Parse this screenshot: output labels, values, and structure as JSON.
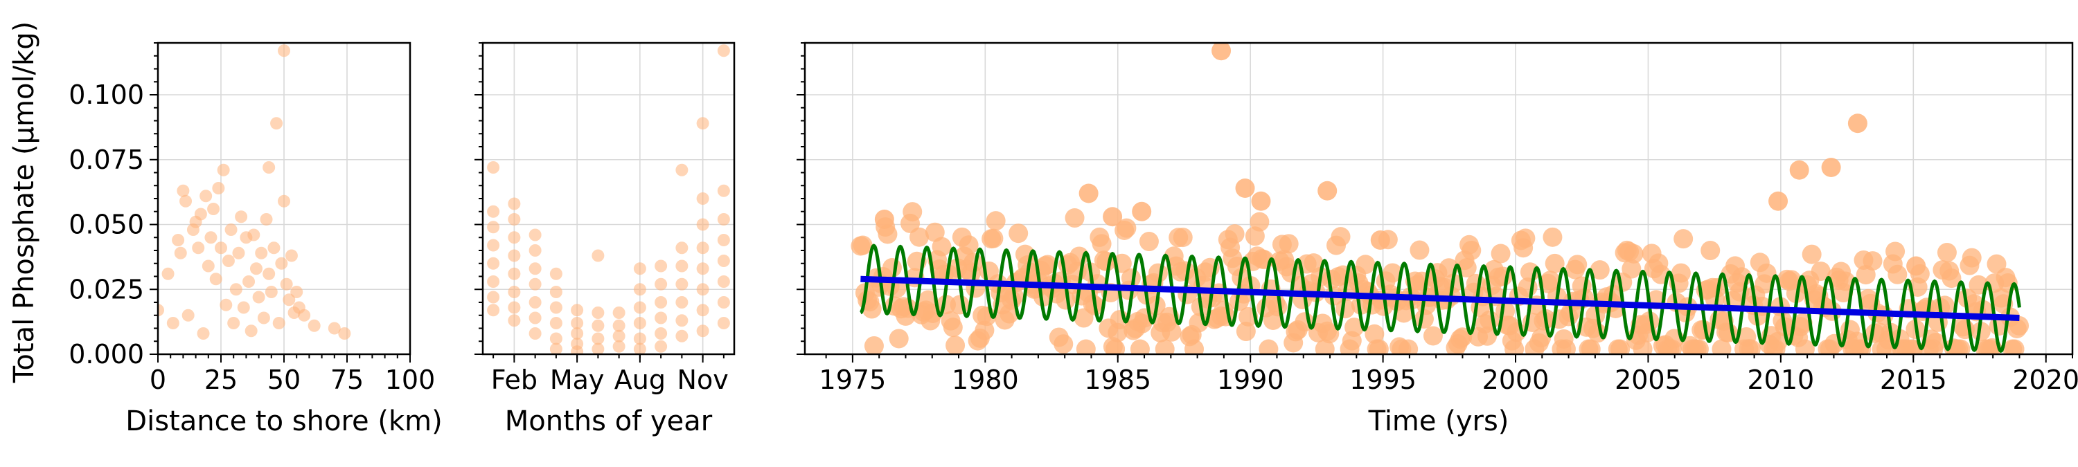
{
  "chart_data": [
    {
      "type": "scatter",
      "xlabel": "Distance to shore (km)",
      "ylabel": "Total Phosphate (µmol/kg)",
      "xlim": [
        0,
        100
      ],
      "ylim": [
        0,
        0.12
      ],
      "xticks": [
        0,
        25,
        50,
        75,
        100
      ],
      "xtick_labels": [
        "0",
        "25",
        "50",
        "75",
        "100"
      ],
      "yticks": [
        0.0,
        0.025,
        0.05,
        0.075,
        0.1
      ],
      "ytick_labels": [
        "0.000",
        "0.025",
        "0.050",
        "0.075",
        "0.100"
      ],
      "grid": true,
      "marker_color": "#ffb37a",
      "points": [
        [
          0,
          0.017
        ],
        [
          4,
          0.031
        ],
        [
          6,
          0.012
        ],
        [
          8,
          0.044
        ],
        [
          9,
          0.039
        ],
        [
          10,
          0.063
        ],
        [
          11,
          0.059
        ],
        [
          12,
          0.015
        ],
        [
          14,
          0.048
        ],
        [
          15,
          0.051
        ],
        [
          16,
          0.041
        ],
        [
          17,
          0.054
        ],
        [
          18,
          0.008
        ],
        [
          19,
          0.061
        ],
        [
          20,
          0.034
        ],
        [
          21,
          0.045
        ],
        [
          22,
          0.056
        ],
        [
          23,
          0.029
        ],
        [
          24,
          0.064
        ],
        [
          25,
          0.041
        ],
        [
          26,
          0.071
        ],
        [
          27,
          0.019
        ],
        [
          28,
          0.036
        ],
        [
          29,
          0.048
        ],
        [
          30,
          0.012
        ],
        [
          31,
          0.025
        ],
        [
          32,
          0.039
        ],
        [
          33,
          0.053
        ],
        [
          34,
          0.018
        ],
        [
          35,
          0.045
        ],
        [
          36,
          0.028
        ],
        [
          37,
          0.009
        ],
        [
          38,
          0.046
        ],
        [
          39,
          0.033
        ],
        [
          40,
          0.022
        ],
        [
          41,
          0.039
        ],
        [
          42,
          0.014
        ],
        [
          43,
          0.052
        ],
        [
          44,
          0.031
        ],
        [
          44,
          0.072
        ],
        [
          45,
          0.024
        ],
        [
          46,
          0.041
        ],
        [
          47,
          0.089
        ],
        [
          48,
          0.012
        ],
        [
          49,
          0.035
        ],
        [
          50,
          0.117
        ],
        [
          50,
          0.059
        ],
        [
          51,
          0.027
        ],
        [
          52,
          0.021
        ],
        [
          53,
          0.038
        ],
        [
          54,
          0.016
        ],
        [
          55,
          0.024
        ],
        [
          56,
          0.018
        ],
        [
          58,
          0.015
        ],
        [
          62,
          0.011
        ],
        [
          70,
          0.01
        ],
        [
          74,
          0.008
        ]
      ]
    },
    {
      "type": "scatter",
      "xlabel": "Months of year",
      "ylim": [
        0,
        0.12
      ],
      "xlim": [
        0.5,
        12.5
      ],
      "xticks": [
        2,
        5,
        8,
        11
      ],
      "xtick_labels": [
        "Feb",
        "May",
        "Aug",
        "Nov"
      ],
      "grid": true,
      "marker_color": "#ffb37a",
      "points": [
        [
          1,
          0.072
        ],
        [
          1,
          0.055
        ],
        [
          1,
          0.049
        ],
        [
          1,
          0.042
        ],
        [
          1,
          0.035
        ],
        [
          1,
          0.028
        ],
        [
          1,
          0.022
        ],
        [
          1,
          0.017
        ],
        [
          2,
          0.058
        ],
        [
          2,
          0.052
        ],
        [
          2,
          0.045
        ],
        [
          2,
          0.038
        ],
        [
          2,
          0.031
        ],
        [
          2,
          0.024
        ],
        [
          2,
          0.018
        ],
        [
          2,
          0.013
        ],
        [
          3,
          0.046
        ],
        [
          3,
          0.04
        ],
        [
          3,
          0.033
        ],
        [
          3,
          0.027
        ],
        [
          3,
          0.02
        ],
        [
          3,
          0.014
        ],
        [
          3,
          0.008
        ],
        [
          4,
          0.031
        ],
        [
          4,
          0.024
        ],
        [
          4,
          0.018
        ],
        [
          4,
          0.012
        ],
        [
          4,
          0.006
        ],
        [
          4,
          0.002
        ],
        [
          5,
          0.017
        ],
        [
          5,
          0.012
        ],
        [
          5,
          0.008
        ],
        [
          5,
          0.004
        ],
        [
          5,
          0.001
        ],
        [
          6,
          0.038
        ],
        [
          6,
          0.016
        ],
        [
          6,
          0.011
        ],
        [
          6,
          0.006
        ],
        [
          6,
          0.002
        ],
        [
          7,
          0.016
        ],
        [
          7,
          0.011
        ],
        [
          7,
          0.007
        ],
        [
          7,
          0.003
        ],
        [
          8,
          0.033
        ],
        [
          8,
          0.025
        ],
        [
          8,
          0.018
        ],
        [
          8,
          0.012
        ],
        [
          8,
          0.006
        ],
        [
          8,
          0.002
        ],
        [
          9,
          0.034
        ],
        [
          9,
          0.027
        ],
        [
          9,
          0.02
        ],
        [
          9,
          0.014
        ],
        [
          9,
          0.008
        ],
        [
          9,
          0.003
        ],
        [
          10,
          0.071
        ],
        [
          10,
          0.041
        ],
        [
          10,
          0.034
        ],
        [
          10,
          0.027
        ],
        [
          10,
          0.02
        ],
        [
          10,
          0.013
        ],
        [
          10,
          0.007
        ],
        [
          11,
          0.089
        ],
        [
          11,
          0.06
        ],
        [
          11,
          0.05
        ],
        [
          11,
          0.041
        ],
        [
          11,
          0.033
        ],
        [
          11,
          0.025
        ],
        [
          11,
          0.017
        ],
        [
          11,
          0.009
        ],
        [
          12,
          0.117
        ],
        [
          12,
          0.063
        ],
        [
          12,
          0.052
        ],
        [
          12,
          0.044
        ],
        [
          12,
          0.036
        ],
        [
          12,
          0.028
        ],
        [
          12,
          0.02
        ],
        [
          12,
          0.012
        ]
      ]
    },
    {
      "type": "line",
      "xlabel": "Time (yrs)",
      "xlim": [
        1973.2,
        2021
      ],
      "ylim": [
        0,
        0.12
      ],
      "xticks": [
        1975,
        1980,
        1985,
        1990,
        1995,
        2000,
        2005,
        2010,
        2015,
        2020
      ],
      "xtick_labels": [
        "1975",
        "1980",
        "1985",
        "1990",
        "1995",
        "2000",
        "2005",
        "2010",
        "2015",
        "2020"
      ],
      "grid": true,
      "scatter": {
        "color": "#ffb37a",
        "outliers": [
          [
            1976.2,
            0.052
          ],
          [
            1983.9,
            0.062
          ],
          [
            1984.8,
            0.053
          ],
          [
            1985.9,
            0.055
          ],
          [
            1988.9,
            0.117
          ],
          [
            1989.8,
            0.064
          ],
          [
            1990.4,
            0.059
          ],
          [
            1992.9,
            0.063
          ],
          [
            1994.9,
            0.044
          ],
          [
            2009.9,
            0.059
          ],
          [
            2010.7,
            0.071
          ],
          [
            2011.9,
            0.072
          ],
          [
            2012.9,
            0.089
          ],
          [
            2015.1,
            0.034
          ]
        ]
      },
      "series": [
        {
          "color": "#0000e0",
          "trend_start": [
            1975.3,
            0.029
          ],
          "trend_end": [
            2019,
            0.014
          ]
        },
        {
          "color": "#007a00",
          "x_start": 1975.3,
          "x_end": 2019,
          "period_years": 1,
          "amplitude": 0.013,
          "phase_peak_month": 1
        }
      ]
    }
  ]
}
